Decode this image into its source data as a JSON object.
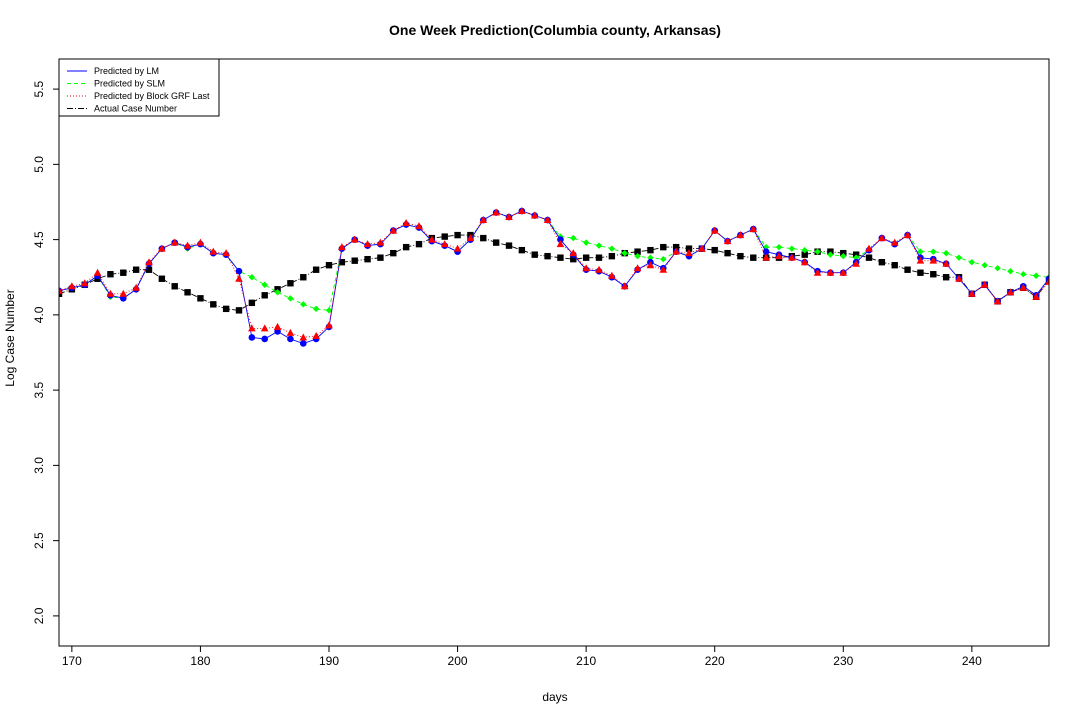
{
  "chart_data": {
    "type": "line",
    "title": "One Week Prediction(Columbia county, Arkansas)",
    "xlabel": "days",
    "ylabel": "Log Case Number",
    "xlim": [
      169,
      246
    ],
    "ylim": [
      1.8,
      5.7
    ],
    "xticks": [
      170,
      180,
      190,
      200,
      210,
      220,
      230,
      240
    ],
    "yticks": [
      2.0,
      2.5,
      3.0,
      3.5,
      4.0,
      4.5,
      5.0,
      5.5
    ],
    "ytick_labels": [
      "2.0",
      "2.5",
      "3.0",
      "3.5",
      "4.0",
      "4.5",
      "5.0",
      "5.5"
    ],
    "legend_position": "top-left",
    "grid": false,
    "x": [
      169,
      170,
      171,
      172,
      173,
      174,
      175,
      176,
      177,
      178,
      179,
      180,
      181,
      182,
      183,
      184,
      185,
      186,
      187,
      188,
      189,
      190,
      191,
      192,
      193,
      194,
      195,
      196,
      197,
      198,
      199,
      200,
      201,
      202,
      203,
      204,
      205,
      206,
      207,
      208,
      209,
      210,
      211,
      212,
      213,
      214,
      215,
      216,
      217,
      218,
      219,
      220,
      221,
      222,
      223,
      224,
      225,
      226,
      227,
      228,
      229,
      230,
      231,
      232,
      233,
      234,
      235,
      236,
      237,
      238,
      239,
      240,
      241,
      242,
      243,
      244,
      245,
      246
    ],
    "series": [
      {
        "name": "Predicted by LM",
        "color": "#0000ff",
        "line": "solid",
        "marker": "circle",
        "values": [
          4.16,
          4.18,
          4.2,
          4.26,
          4.13,
          4.11,
          4.17,
          4.34,
          4.44,
          4.48,
          4.45,
          4.47,
          4.41,
          4.4,
          4.29,
          3.85,
          3.84,
          3.89,
          3.84,
          3.81,
          3.84,
          3.92,
          4.44,
          4.5,
          4.46,
          4.47,
          4.56,
          4.6,
          4.58,
          4.49,
          4.46,
          4.42,
          4.5,
          4.63,
          4.68,
          4.65,
          4.69,
          4.66,
          4.63,
          4.5,
          4.4,
          4.3,
          4.29,
          4.25,
          4.19,
          4.3,
          4.35,
          4.31,
          4.42,
          4.39,
          4.44,
          4.56,
          4.49,
          4.53,
          4.57,
          4.42,
          4.4,
          4.38,
          4.35,
          4.29,
          4.28,
          4.28,
          4.35,
          4.43,
          4.51,
          4.47,
          4.53,
          4.38,
          4.37,
          4.34,
          4.24,
          4.14,
          4.2,
          4.09,
          4.15,
          4.19,
          4.13,
          4.24
        ]
      },
      {
        "name": "Predicted by SLM",
        "color": "#00ff00",
        "line": "dashed",
        "marker": "diamond",
        "values": [
          4.16,
          4.18,
          4.2,
          4.26,
          4.12,
          4.11,
          4.17,
          4.34,
          4.44,
          4.48,
          4.44,
          4.47,
          4.41,
          4.4,
          4.29,
          4.25,
          4.2,
          4.15,
          4.11,
          4.07,
          4.04,
          4.03,
          4.44,
          4.5,
          4.46,
          4.47,
          4.56,
          4.6,
          4.58,
          4.49,
          4.46,
          4.42,
          4.5,
          4.63,
          4.68,
          4.65,
          4.69,
          4.66,
          4.63,
          4.52,
          4.51,
          4.48,
          4.46,
          4.44,
          4.41,
          4.39,
          4.38,
          4.37,
          4.42,
          4.39,
          4.44,
          4.56,
          4.49,
          4.53,
          4.57,
          4.45,
          4.45,
          4.44,
          4.43,
          4.42,
          4.4,
          4.39,
          4.38,
          4.43,
          4.51,
          4.47,
          4.53,
          4.42,
          4.42,
          4.41,
          4.38,
          4.35,
          4.33,
          4.31,
          4.29,
          4.27,
          4.26,
          4.25
        ]
      },
      {
        "name": "Predicted by Block GRF Last",
        "color": "#ff0000",
        "line": "dotted",
        "marker": "triangle",
        "values": [
          4.16,
          4.19,
          4.21,
          4.28,
          4.14,
          4.14,
          4.18,
          4.35,
          4.44,
          4.48,
          4.46,
          4.48,
          4.42,
          4.41,
          4.24,
          3.91,
          3.91,
          3.92,
          3.88,
          3.85,
          3.86,
          3.93,
          4.45,
          4.5,
          4.47,
          4.48,
          4.56,
          4.61,
          4.59,
          4.5,
          4.47,
          4.44,
          4.51,
          4.63,
          4.68,
          4.65,
          4.69,
          4.66,
          4.63,
          4.47,
          4.41,
          4.31,
          4.3,
          4.26,
          4.19,
          4.31,
          4.33,
          4.3,
          4.42,
          4.41,
          4.44,
          4.56,
          4.49,
          4.53,
          4.57,
          4.38,
          4.39,
          4.38,
          4.35,
          4.28,
          4.28,
          4.28,
          4.34,
          4.44,
          4.51,
          4.48,
          4.53,
          4.36,
          4.36,
          4.34,
          4.24,
          4.14,
          4.2,
          4.09,
          4.15,
          4.18,
          4.12,
          4.22
        ]
      },
      {
        "name": "Actual Case Number",
        "color": "#000000",
        "line": "dashdot",
        "marker": "square",
        "values": [
          4.14,
          4.17,
          4.2,
          4.24,
          4.27,
          4.28,
          4.3,
          4.3,
          4.24,
          4.19,
          4.15,
          4.11,
          4.07,
          4.04,
          4.03,
          4.08,
          4.13,
          4.17,
          4.21,
          4.25,
          4.3,
          4.33,
          4.35,
          4.36,
          4.37,
          4.38,
          4.41,
          4.45,
          4.47,
          4.51,
          4.52,
          4.53,
          4.53,
          4.51,
          4.48,
          4.46,
          4.43,
          4.4,
          4.39,
          4.38,
          4.37,
          4.38,
          4.38,
          4.39,
          4.41,
          4.42,
          4.43,
          4.45,
          4.45,
          4.44,
          4.44,
          4.43,
          4.41,
          4.39,
          4.38,
          4.38,
          4.38,
          4.39,
          4.4,
          4.42,
          4.42,
          4.41,
          4.4,
          4.38,
          4.35,
          4.33,
          4.3,
          4.28,
          4.27,
          4.25,
          4.25,
          4.14,
          4.2,
          4.09,
          4.15,
          4.18,
          4.12,
          4.23
        ]
      }
    ]
  }
}
